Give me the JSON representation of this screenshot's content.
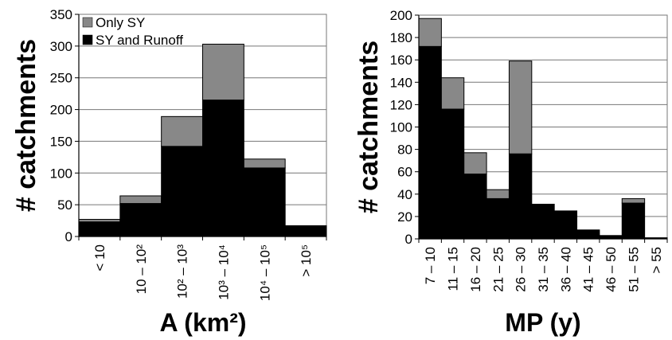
{
  "chart_data": [
    {
      "type": "bar",
      "stacked": true,
      "xlabel": "A (km²)",
      "ylabel": "# catchments",
      "ylim": [
        0,
        350
      ],
      "yticks": [
        0,
        50,
        100,
        150,
        200,
        250,
        300,
        350
      ],
      "grid": true,
      "legend": "top-left",
      "categories": [
        "< 10",
        "10 – 10²",
        "10² – 10³",
        "10³ – 10⁴",
        "10⁴ – 10⁵",
        "> 10⁵"
      ],
      "series": [
        {
          "name": "SY and Runoff",
          "color": "#000000",
          "values": [
            23,
            52,
            142,
            215,
            108,
            17
          ]
        },
        {
          "name": "Only SY",
          "color": "#888888",
          "values": [
            4,
            12,
            47,
            88,
            14,
            0
          ]
        }
      ]
    },
    {
      "type": "bar",
      "stacked": true,
      "xlabel": "MP (y)",
      "ylabel": "# catchments",
      "ylim": [
        0,
        200
      ],
      "yticks": [
        0,
        20,
        40,
        60,
        80,
        100,
        120,
        140,
        160,
        180,
        200
      ],
      "grid": true,
      "categories": [
        "7 – 10",
        "11 – 15",
        "16 – 20",
        "21 – 25",
        "26 – 30",
        "31 – 35",
        "36 – 40",
        "41 – 45",
        "46 – 50",
        "51 – 55",
        "> 55"
      ],
      "series": [
        {
          "name": "SY and Runoff",
          "color": "#000000",
          "values": [
            172,
            116,
            58,
            36,
            76,
            31,
            25,
            8,
            3,
            32,
            1
          ]
        },
        {
          "name": "Only SY",
          "color": "#888888",
          "values": [
            25,
            28,
            19,
            8,
            83,
            0,
            0,
            0,
            0,
            4,
            0
          ]
        }
      ]
    }
  ]
}
